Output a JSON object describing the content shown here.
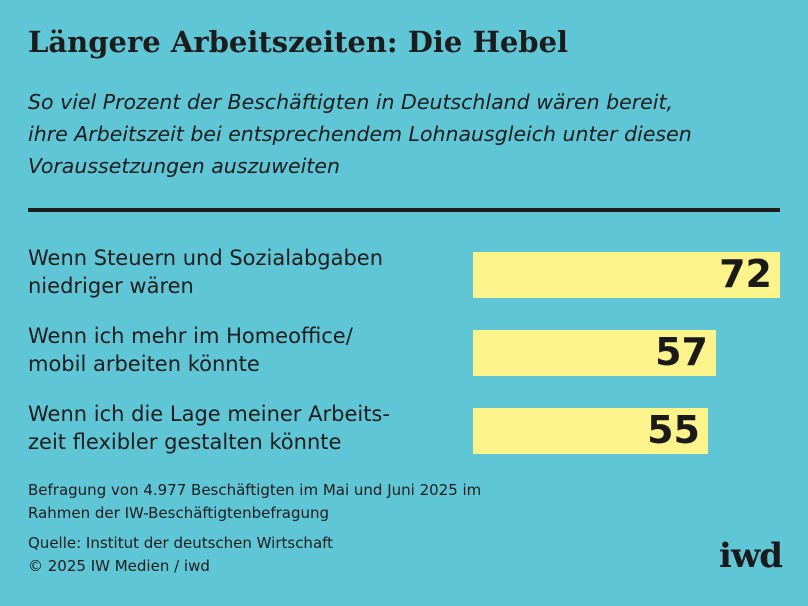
{
  "title": "Längere Arbeitszeiten: Die Hebel",
  "subtitle_lines": [
    "So viel Prozent der Beschäftigten in Deutschland wären bereit,",
    "ihre Arbeitszeit bei entsprechendem Lohnausgleich unter diesen",
    "Voraussetzungen auszuweiten"
  ],
  "chart_data": {
    "type": "bar",
    "orientation": "horizontal",
    "categories": [
      "Wenn Steuern und Sozialabgaben niedriger wären",
      "Wenn ich mehr im Homeoffice/ mobil arbeiten könnte",
      "Wenn ich die Lage meiner Arbeits- zeit flexibler gestalten könnte"
    ],
    "category_lines": [
      [
        "Wenn Steuern und Sozialabgaben",
        "niedriger wären"
      ],
      [
        "Wenn ich mehr im Homeoffice/",
        "mobil arbeiten könnte"
      ],
      [
        "Wenn ich die Lage meiner Arbeits-",
        "zeit flexibler gestalten könnte"
      ]
    ],
    "values": [
      72,
      57,
      55
    ],
    "xlim": [
      0,
      72
    ],
    "grid": false,
    "legend": "none",
    "bar_color": "#fdf38b"
  },
  "note_lines": [
    "Befragung von 4.977 Beschäftigten im Mai und Juni 2025 im",
    "Rahmen der IW-Beschäftigtenbefragung"
  ],
  "source_lines": [
    "Quelle: Institut der deutschen Wirtschaft",
    "© 2025 IW Medien / iwd"
  ],
  "logo_text": "iwd",
  "colors": {
    "background": "#5fc6d6",
    "bar": "#fdf38b",
    "text": "#1c1c1c"
  }
}
